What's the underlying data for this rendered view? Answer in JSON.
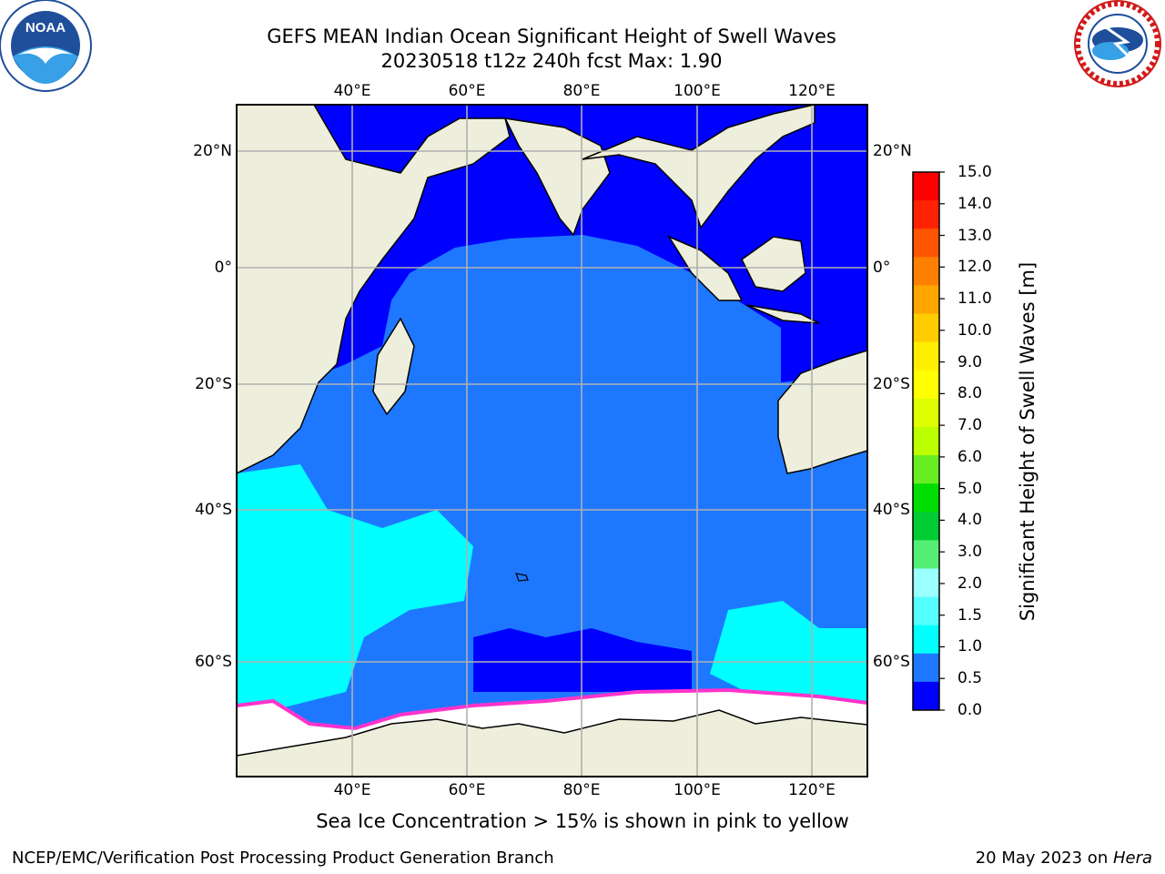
{
  "header": {
    "title_line1": "GEFS MEAN Indian Ocean Significant Height of Swell Waves",
    "title_line2": "20230518 t12z 240h fcst   Max: 1.90"
  },
  "map": {
    "lon_labels": [
      "40°E",
      "60°E",
      "80°E",
      "100°E",
      "120°E"
    ],
    "lat_labels": [
      "20°N",
      "0°",
      "20°S",
      "40°S",
      "60°S"
    ],
    "extent": {
      "lon": [
        20,
        130
      ],
      "lat": [
        -72,
        28
      ]
    },
    "regions": {
      "land": "#eeeedc",
      "ocean_calm": "#0000ff",
      "ocean_main": "#1e78ff",
      "ocean_cyan": "#00ffff",
      "sea_ice": "#ffffff",
      "ice_edge": "#ff33cc"
    }
  },
  "colorbar": {
    "title": "Significant Height of Swell Waves [m]",
    "levels": [
      "15.0",
      "14.0",
      "13.0",
      "12.0",
      "11.0",
      "10.0",
      "9.0",
      "8.0",
      "7.0",
      "6.0",
      "5.0",
      "4.0",
      "3.0",
      "2.0",
      "1.5",
      "1.0",
      "0.5",
      "0.0"
    ],
    "colors_top_to_bottom": [
      "#ff0000",
      "#ff2200",
      "#ff5500",
      "#ff8000",
      "#ffa500",
      "#ffcc00",
      "#ffee00",
      "#ffff00",
      "#ddff00",
      "#bbff00",
      "#66ee22",
      "#00dd00",
      "#00cc33",
      "#55ee77",
      "#99ffff",
      "#55ffff",
      "#00ffff",
      "#1e78ff",
      "#0000ff"
    ]
  },
  "footer": {
    "ice_note": "Sea Ice Concentration > 15% is shown in pink to yellow",
    "credit_left": "NCEP/EMC/Verification Post Processing Product Generation Branch",
    "credit_date": "20 May 2023 on ",
    "credit_machine": "Hera"
  },
  "logos": {
    "left": "noaa-logo",
    "right": "nws-logo"
  }
}
